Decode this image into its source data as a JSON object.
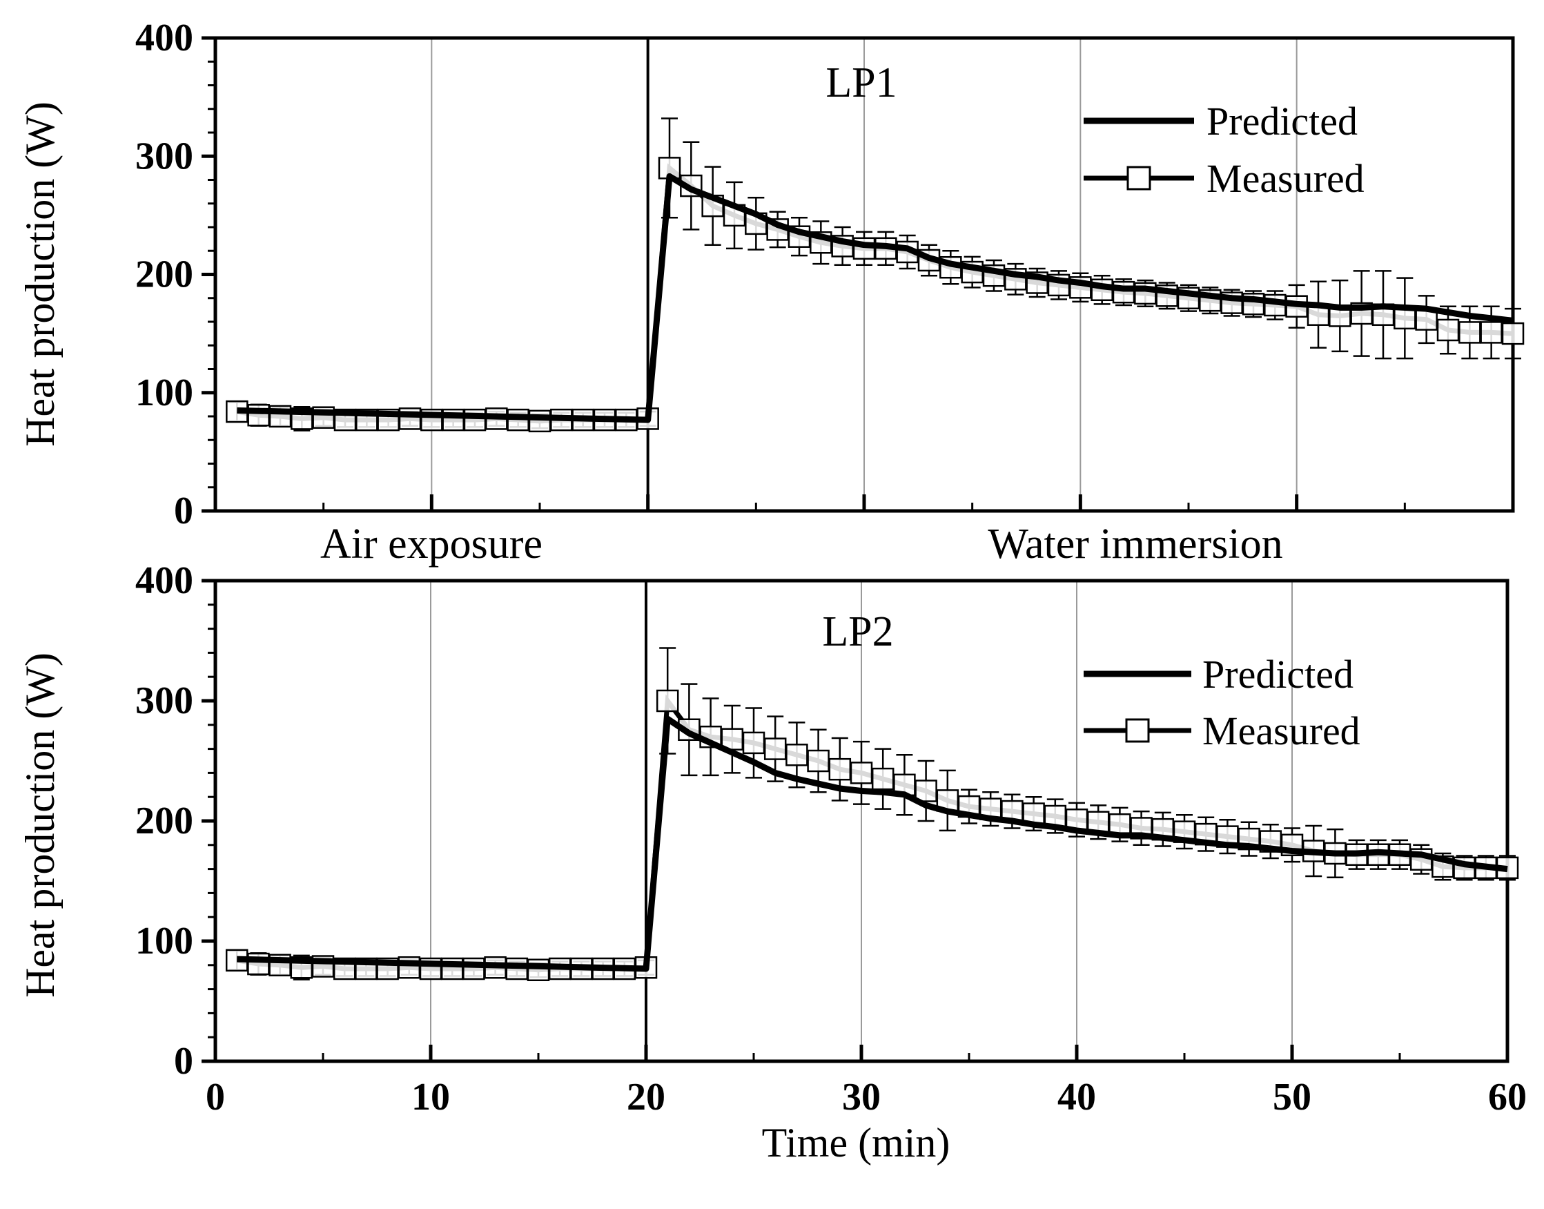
{
  "chart_data": [
    {
      "type": "line",
      "panel_label": "LP1",
      "xlabel": "",
      "ylabel": "Heat production (W)",
      "xlim": [
        0,
        60
      ],
      "ylim": [
        0,
        400
      ],
      "yticks": [
        "0",
        "100",
        "200",
        "300",
        "400"
      ],
      "xticks": [
        "0",
        "10",
        "20",
        "30",
        "40",
        "50",
        "60"
      ],
      "divider_x": 20,
      "gridlines_x": [
        10,
        30,
        40,
        50
      ],
      "legend": {
        "placement": "top-right",
        "predicted": "Predicted",
        "measured": "Measured"
      },
      "series": [
        {
          "name": "Predicted",
          "x": [
            1,
            20,
            21,
            22,
            23,
            24,
            25,
            26,
            27,
            28,
            29,
            30,
            31,
            32,
            33,
            34,
            35,
            36,
            37,
            38,
            39,
            40,
            41,
            42,
            43,
            44,
            45,
            46,
            47,
            48,
            49,
            50,
            51,
            52,
            53,
            54,
            55,
            56,
            57,
            58,
            59,
            60
          ],
          "values": [
            85,
            77,
            283,
            272,
            265,
            258,
            251,
            242,
            236,
            232,
            228,
            225,
            224,
            222,
            214,
            209,
            206,
            203,
            200,
            198,
            195,
            193,
            190,
            188,
            188,
            186,
            184,
            182,
            180,
            179,
            177,
            175,
            174,
            172,
            172,
            173,
            172,
            171,
            168,
            165,
            163,
            161
          ]
        },
        {
          "name": "Measured",
          "x": [
            1,
            2,
            3,
            4,
            5,
            6,
            7,
            8,
            9,
            10,
            11,
            12,
            13,
            14,
            15,
            16,
            17,
            18,
            19,
            20,
            21,
            22,
            23,
            24,
            25,
            26,
            27,
            28,
            29,
            30,
            31,
            32,
            33,
            34,
            35,
            36,
            37,
            38,
            39,
            40,
            41,
            42,
            43,
            44,
            45,
            46,
            47,
            48,
            49,
            50,
            51,
            52,
            53,
            54,
            55,
            56,
            57,
            58,
            59,
            60
          ],
          "values": [
            84,
            81,
            80,
            78,
            79,
            77,
            77,
            77,
            78,
            77,
            77,
            77,
            78,
            77,
            76,
            77,
            77,
            77,
            77,
            78,
            290,
            275,
            258,
            250,
            243,
            238,
            232,
            227,
            224,
            222,
            222,
            219,
            212,
            206,
            202,
            199,
            196,
            193,
            191,
            189,
            187,
            185,
            184,
            182,
            180,
            178,
            176,
            175,
            174,
            173,
            166,
            165,
            167,
            166,
            163,
            162,
            153,
            151,
            151,
            150
          ],
          "errors": [
            8,
            9,
            8,
            10,
            7,
            6,
            6,
            6,
            6,
            6,
            6,
            6,
            6,
            6,
            6,
            6,
            6,
            6,
            6,
            6,
            42,
            37,
            33,
            28,
            22,
            15,
            16,
            18,
            16,
            14,
            14,
            14,
            13,
            14,
            13,
            13,
            13,
            12,
            12,
            12,
            12,
            11,
            11,
            11,
            11,
            11,
            11,
            11,
            12,
            18,
            28,
            30,
            36,
            37,
            34,
            20,
            20,
            22,
            22,
            21
          ]
        }
      ],
      "phase_labels": {
        "left": "Air exposure",
        "right": "Water immersion"
      }
    },
    {
      "type": "line",
      "panel_label": "LP2",
      "xlabel": "Time (min)",
      "ylabel": "Heat production (W)",
      "xlim": [
        0,
        60
      ],
      "ylim": [
        0,
        400
      ],
      "yticks": [
        "0",
        "100",
        "200",
        "300",
        "400"
      ],
      "xticks": [
        "0",
        "10",
        "20",
        "30",
        "40",
        "50",
        "60"
      ],
      "divider_x": 20,
      "gridlines_x": [
        10,
        30,
        40,
        50
      ],
      "legend": {
        "placement": "top-right",
        "predicted": "Predicted",
        "measured": "Measured"
      },
      "series": [
        {
          "name": "Predicted",
          "x": [
            1,
            20,
            21,
            22,
            23,
            24,
            25,
            26,
            27,
            28,
            29,
            30,
            31,
            32,
            33,
            34,
            35,
            36,
            37,
            38,
            39,
            40,
            41,
            42,
            43,
            44,
            45,
            46,
            47,
            48,
            49,
            50,
            51,
            52,
            53,
            54,
            55,
            56,
            57,
            58,
            59,
            60
          ],
          "values": [
            85,
            77,
            285,
            273,
            265,
            257,
            249,
            240,
            235,
            231,
            227,
            225,
            224,
            222,
            213,
            208,
            205,
            202,
            200,
            197,
            195,
            192,
            190,
            188,
            188,
            186,
            184,
            182,
            180,
            179,
            177,
            175,
            174,
            173,
            173,
            174,
            173,
            172,
            168,
            164,
            162,
            160
          ]
        },
        {
          "name": "Measured",
          "x": [
            1,
            2,
            3,
            4,
            5,
            6,
            7,
            8,
            9,
            10,
            11,
            12,
            13,
            14,
            15,
            16,
            17,
            18,
            19,
            20,
            21,
            22,
            23,
            24,
            25,
            26,
            27,
            28,
            29,
            30,
            31,
            32,
            33,
            34,
            35,
            36,
            37,
            38,
            39,
            40,
            41,
            42,
            43,
            44,
            45,
            46,
            47,
            48,
            49,
            50,
            51,
            52,
            53,
            54,
            55,
            56,
            57,
            58,
            59,
            60
          ],
          "values": [
            84,
            81,
            80,
            78,
            79,
            77,
            77,
            77,
            78,
            77,
            77,
            77,
            78,
            77,
            76,
            77,
            77,
            77,
            77,
            78,
            300,
            276,
            270,
            268,
            265,
            260,
            255,
            250,
            243,
            240,
            235,
            230,
            225,
            217,
            212,
            210,
            208,
            206,
            204,
            201,
            199,
            197,
            194,
            193,
            191,
            189,
            187,
            185,
            183,
            180,
            175,
            173,
            172,
            172,
            172,
            168,
            162,
            161,
            161,
            161
          ],
          "errors": [
            8,
            9,
            8,
            10,
            7,
            6,
            6,
            6,
            6,
            6,
            6,
            6,
            6,
            6,
            6,
            6,
            6,
            6,
            6,
            6,
            44,
            38,
            32,
            28,
            29,
            27,
            27,
            26,
            26,
            26,
            25,
            25,
            25,
            25,
            14,
            14,
            14,
            14,
            14,
            14,
            14,
            14,
            14,
            14,
            14,
            14,
            14,
            14,
            14,
            14,
            21,
            20,
            12,
            12,
            12,
            12,
            11,
            10,
            10,
            10
          ]
        }
      ]
    }
  ]
}
